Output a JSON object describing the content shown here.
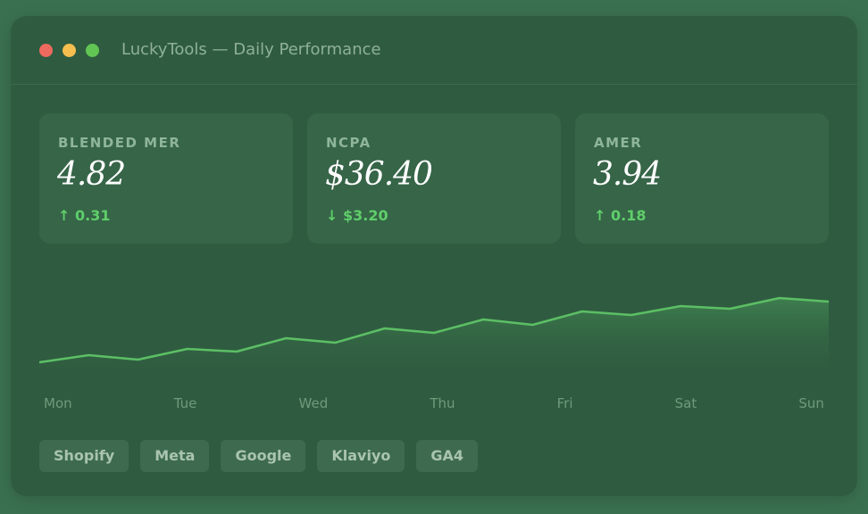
{
  "window": {
    "title": "LuckyTools — Daily Performance"
  },
  "metrics": [
    {
      "label": "BLENDED MER",
      "value": "4.82",
      "delta": "↑ 0.31"
    },
    {
      "label": "NCPA",
      "value": "$36.40",
      "delta": "↓ $3.20"
    },
    {
      "label": "AMER",
      "value": "3.94",
      "delta": "↑ 0.18"
    }
  ],
  "chart_data": {
    "type": "line",
    "color": "#5cbf65",
    "values": [
      24,
      32,
      27,
      39,
      36,
      51,
      46,
      62,
      57,
      72,
      66,
      81,
      77,
      87,
      84,
      96,
      92
    ],
    "ylim": [
      0,
      110
    ],
    "x_labels": [
      "Mon",
      "Tue",
      "Wed",
      "Thu",
      "Fri",
      "Sat",
      "Sun"
    ]
  },
  "tags": [
    "Shopify",
    "Meta",
    "Google",
    "Klaviyo",
    "GA4"
  ]
}
